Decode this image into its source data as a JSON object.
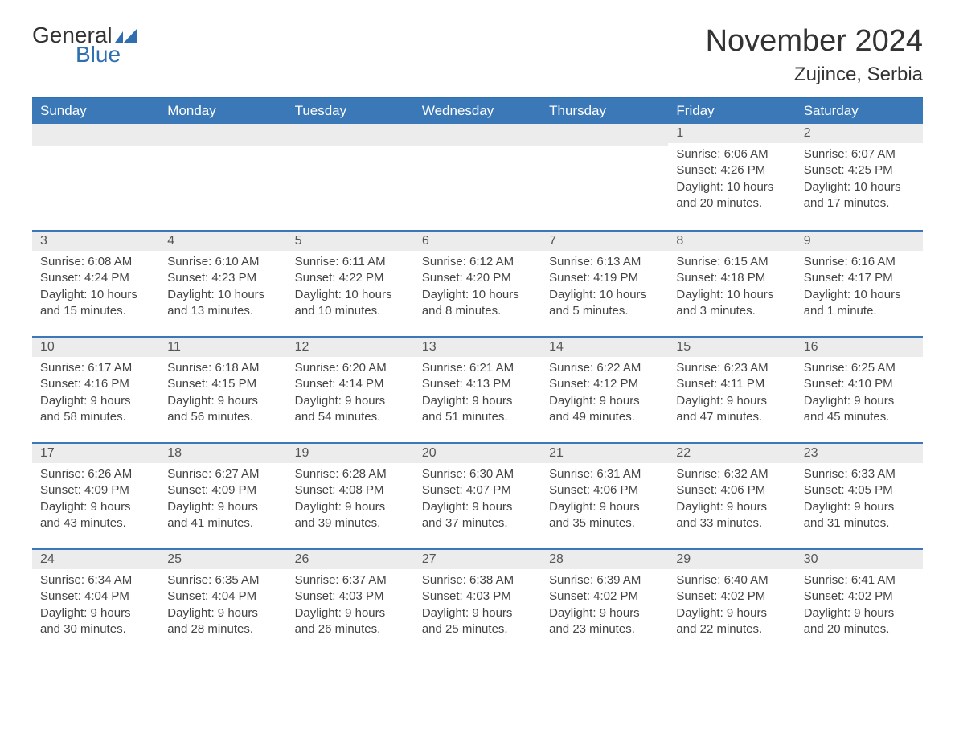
{
  "brand": {
    "word1": "General",
    "word2": "Blue",
    "logo_color": "#2f6fb0"
  },
  "title": "November 2024",
  "location": "Zujince, Serbia",
  "colors": {
    "header_bg": "#3b78b8",
    "header_text": "#ffffff",
    "day_header_bg": "#ececec",
    "day_border": "#3b78b8",
    "text": "#333333",
    "body_text": "#444444"
  },
  "weekdays": [
    "Sunday",
    "Monday",
    "Tuesday",
    "Wednesday",
    "Thursday",
    "Friday",
    "Saturday"
  ],
  "weeks": [
    [
      null,
      null,
      null,
      null,
      null,
      {
        "n": "1",
        "sunrise": "Sunrise: 6:06 AM",
        "sunset": "Sunset: 4:26 PM",
        "daylight": "Daylight: 10 hours and 20 minutes."
      },
      {
        "n": "2",
        "sunrise": "Sunrise: 6:07 AM",
        "sunset": "Sunset: 4:25 PM",
        "daylight": "Daylight: 10 hours and 17 minutes."
      }
    ],
    [
      {
        "n": "3",
        "sunrise": "Sunrise: 6:08 AM",
        "sunset": "Sunset: 4:24 PM",
        "daylight": "Daylight: 10 hours and 15 minutes."
      },
      {
        "n": "4",
        "sunrise": "Sunrise: 6:10 AM",
        "sunset": "Sunset: 4:23 PM",
        "daylight": "Daylight: 10 hours and 13 minutes."
      },
      {
        "n": "5",
        "sunrise": "Sunrise: 6:11 AM",
        "sunset": "Sunset: 4:22 PM",
        "daylight": "Daylight: 10 hours and 10 minutes."
      },
      {
        "n": "6",
        "sunrise": "Sunrise: 6:12 AM",
        "sunset": "Sunset: 4:20 PM",
        "daylight": "Daylight: 10 hours and 8 minutes."
      },
      {
        "n": "7",
        "sunrise": "Sunrise: 6:13 AM",
        "sunset": "Sunset: 4:19 PM",
        "daylight": "Daylight: 10 hours and 5 minutes."
      },
      {
        "n": "8",
        "sunrise": "Sunrise: 6:15 AM",
        "sunset": "Sunset: 4:18 PM",
        "daylight": "Daylight: 10 hours and 3 minutes."
      },
      {
        "n": "9",
        "sunrise": "Sunrise: 6:16 AM",
        "sunset": "Sunset: 4:17 PM",
        "daylight": "Daylight: 10 hours and 1 minute."
      }
    ],
    [
      {
        "n": "10",
        "sunrise": "Sunrise: 6:17 AM",
        "sunset": "Sunset: 4:16 PM",
        "daylight": "Daylight: 9 hours and 58 minutes."
      },
      {
        "n": "11",
        "sunrise": "Sunrise: 6:18 AM",
        "sunset": "Sunset: 4:15 PM",
        "daylight": "Daylight: 9 hours and 56 minutes."
      },
      {
        "n": "12",
        "sunrise": "Sunrise: 6:20 AM",
        "sunset": "Sunset: 4:14 PM",
        "daylight": "Daylight: 9 hours and 54 minutes."
      },
      {
        "n": "13",
        "sunrise": "Sunrise: 6:21 AM",
        "sunset": "Sunset: 4:13 PM",
        "daylight": "Daylight: 9 hours and 51 minutes."
      },
      {
        "n": "14",
        "sunrise": "Sunrise: 6:22 AM",
        "sunset": "Sunset: 4:12 PM",
        "daylight": "Daylight: 9 hours and 49 minutes."
      },
      {
        "n": "15",
        "sunrise": "Sunrise: 6:23 AM",
        "sunset": "Sunset: 4:11 PM",
        "daylight": "Daylight: 9 hours and 47 minutes."
      },
      {
        "n": "16",
        "sunrise": "Sunrise: 6:25 AM",
        "sunset": "Sunset: 4:10 PM",
        "daylight": "Daylight: 9 hours and 45 minutes."
      }
    ],
    [
      {
        "n": "17",
        "sunrise": "Sunrise: 6:26 AM",
        "sunset": "Sunset: 4:09 PM",
        "daylight": "Daylight: 9 hours and 43 minutes."
      },
      {
        "n": "18",
        "sunrise": "Sunrise: 6:27 AM",
        "sunset": "Sunset: 4:09 PM",
        "daylight": "Daylight: 9 hours and 41 minutes."
      },
      {
        "n": "19",
        "sunrise": "Sunrise: 6:28 AM",
        "sunset": "Sunset: 4:08 PM",
        "daylight": "Daylight: 9 hours and 39 minutes."
      },
      {
        "n": "20",
        "sunrise": "Sunrise: 6:30 AM",
        "sunset": "Sunset: 4:07 PM",
        "daylight": "Daylight: 9 hours and 37 minutes."
      },
      {
        "n": "21",
        "sunrise": "Sunrise: 6:31 AM",
        "sunset": "Sunset: 4:06 PM",
        "daylight": "Daylight: 9 hours and 35 minutes."
      },
      {
        "n": "22",
        "sunrise": "Sunrise: 6:32 AM",
        "sunset": "Sunset: 4:06 PM",
        "daylight": "Daylight: 9 hours and 33 minutes."
      },
      {
        "n": "23",
        "sunrise": "Sunrise: 6:33 AM",
        "sunset": "Sunset: 4:05 PM",
        "daylight": "Daylight: 9 hours and 31 minutes."
      }
    ],
    [
      {
        "n": "24",
        "sunrise": "Sunrise: 6:34 AM",
        "sunset": "Sunset: 4:04 PM",
        "daylight": "Daylight: 9 hours and 30 minutes."
      },
      {
        "n": "25",
        "sunrise": "Sunrise: 6:35 AM",
        "sunset": "Sunset: 4:04 PM",
        "daylight": "Daylight: 9 hours and 28 minutes."
      },
      {
        "n": "26",
        "sunrise": "Sunrise: 6:37 AM",
        "sunset": "Sunset: 4:03 PM",
        "daylight": "Daylight: 9 hours and 26 minutes."
      },
      {
        "n": "27",
        "sunrise": "Sunrise: 6:38 AM",
        "sunset": "Sunset: 4:03 PM",
        "daylight": "Daylight: 9 hours and 25 minutes."
      },
      {
        "n": "28",
        "sunrise": "Sunrise: 6:39 AM",
        "sunset": "Sunset: 4:02 PM",
        "daylight": "Daylight: 9 hours and 23 minutes."
      },
      {
        "n": "29",
        "sunrise": "Sunrise: 6:40 AM",
        "sunset": "Sunset: 4:02 PM",
        "daylight": "Daylight: 9 hours and 22 minutes."
      },
      {
        "n": "30",
        "sunrise": "Sunrise: 6:41 AM",
        "sunset": "Sunset: 4:02 PM",
        "daylight": "Daylight: 9 hours and 20 minutes."
      }
    ]
  ]
}
